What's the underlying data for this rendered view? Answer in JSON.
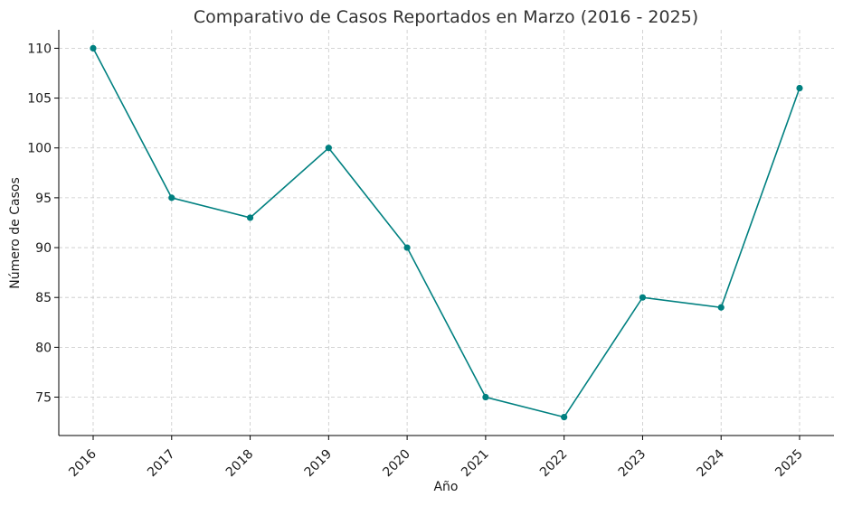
{
  "chart_data": {
    "type": "line",
    "title": "Comparativo de Casos Reportados en Marzo (2016 - 2025)",
    "xlabel": "Año",
    "ylabel": "Número de Casos",
    "categories": [
      "2016",
      "2017",
      "2018",
      "2019",
      "2020",
      "2021",
      "2022",
      "2023",
      "2024",
      "2025"
    ],
    "series": [
      {
        "values": [
          110,
          95,
          93,
          100,
          90,
          75,
          73,
          85,
          84,
          106
        ]
      }
    ],
    "yticks": [
      75,
      80,
      85,
      90,
      95,
      100,
      105,
      110
    ],
    "ylim": [
      71.15,
      111.85
    ],
    "grid": true,
    "markers": true,
    "xtick_rotation": -45,
    "color": "#008080"
  }
}
